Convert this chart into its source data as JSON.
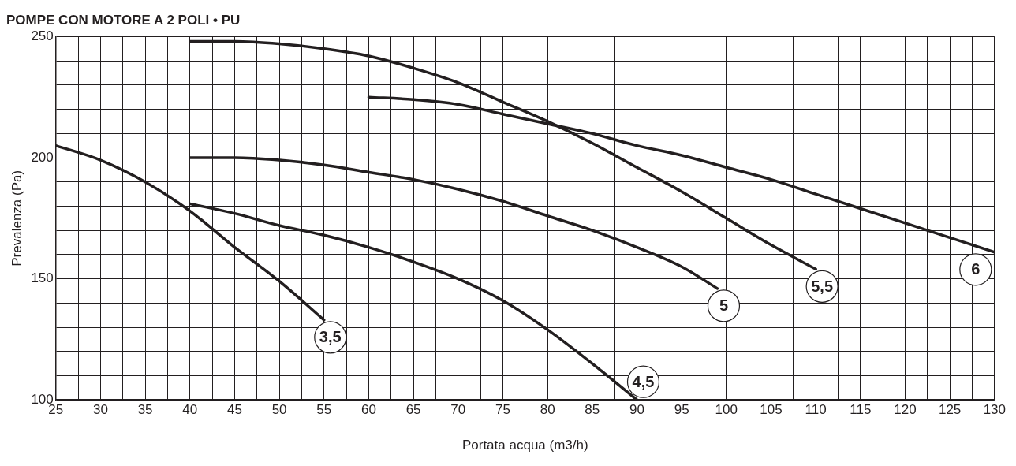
{
  "chart_data": {
    "type": "line",
    "title": "POMPE CON MOTORE A 2 POLI • PU",
    "xlabel": "Portata acqua (m3/h)",
    "ylabel": "Prevalenza (Pa)",
    "xlim": [
      25,
      130
    ],
    "ylim": [
      100,
      250
    ],
    "xticks": [
      25,
      {
        "value": 27.5,
        "label": null
      },
      30,
      {
        "value": 32.5,
        "label": null
      },
      35,
      {
        "value": 37.5,
        "label": null
      },
      40,
      {
        "value": 42.5,
        "label": null
      },
      45,
      {
        "value": 47.5,
        "label": null
      },
      50,
      {
        "value": 52.5,
        "label": null
      },
      55,
      {
        "value": 57.5,
        "label": null
      },
      60,
      {
        "value": 62.5,
        "label": null
      },
      65,
      {
        "value": 67.5,
        "label": null
      },
      70,
      {
        "value": 72.5,
        "label": null
      },
      75,
      {
        "value": 77.5,
        "label": null
      },
      80,
      {
        "value": 82.5,
        "label": null
      },
      85,
      {
        "value": 87.5,
        "label": null
      },
      90,
      {
        "value": 92.5,
        "label": null
      },
      95,
      {
        "value": 97.5,
        "label": null
      },
      100,
      {
        "value": 102.5,
        "label": null
      },
      105,
      {
        "value": 107.5,
        "label": null
      },
      110,
      {
        "value": 112.5,
        "label": null
      },
      115,
      {
        "value": 117.5,
        "label": null
      },
      120,
      {
        "value": 122.5,
        "label": null
      },
      125,
      {
        "value": 127.5,
        "label": null
      },
      130
    ],
    "yticks": [
      100,
      {
        "value": 110,
        "label": null
      },
      {
        "value": 120,
        "label": null
      },
      {
        "value": 130,
        "label": null
      },
      {
        "value": 140,
        "label": null
      },
      150,
      {
        "value": 160,
        "label": null
      },
      {
        "value": 170,
        "label": null
      },
      {
        "value": 180,
        "label": null
      },
      {
        "value": 190,
        "label": null
      },
      200,
      {
        "value": 210,
        "label": null
      },
      {
        "value": 220,
        "label": null
      },
      {
        "value": 230,
        "label": null
      },
      {
        "value": 240,
        "label": null
      },
      250
    ],
    "grid": true,
    "legend": false,
    "marker": "none",
    "line_style": "solid",
    "series": [
      {
        "name": "3,5",
        "color": "#231f20",
        "x": [
          25,
          30,
          35,
          40,
          45,
          50,
          55
        ],
        "values": [
          205,
          199,
          190,
          178,
          163,
          149,
          133
        ]
      },
      {
        "name": "4,5",
        "color": "#231f20",
        "x": [
          40,
          45,
          50,
          55,
          60,
          65,
          70,
          75,
          80,
          85,
          90
        ],
        "values": [
          181,
          177,
          172,
          168,
          163,
          157,
          150,
          141,
          129,
          115,
          100
        ]
      },
      {
        "name": "5",
        "color": "#231f20",
        "x": [
          40,
          45,
          50,
          55,
          60,
          65,
          70,
          75,
          80,
          85,
          90,
          95,
          99
        ],
        "values": [
          200,
          200,
          199,
          197,
          194,
          191,
          187,
          182,
          176,
          170,
          163,
          155,
          146
        ]
      },
      {
        "name": "5,5",
        "color": "#231f20",
        "x": [
          40,
          45,
          50,
          55,
          60,
          65,
          70,
          75,
          80,
          85,
          90,
          95,
          100,
          105,
          110
        ],
        "values": [
          248,
          248,
          247,
          245,
          242,
          237,
          231,
          223,
          215,
          206,
          196,
          186,
          175,
          164,
          154
        ]
      },
      {
        "name": "6",
        "color": "#231f20",
        "x": [
          60,
          65,
          70,
          75,
          80,
          85,
          90,
          95,
          100,
          105,
          110,
          115,
          120,
          125,
          130
        ],
        "values": [
          225,
          224,
          222,
          218,
          214,
          210,
          205,
          201,
          196,
          191,
          185,
          179,
          173,
          167,
          161
        ]
      }
    ]
  }
}
